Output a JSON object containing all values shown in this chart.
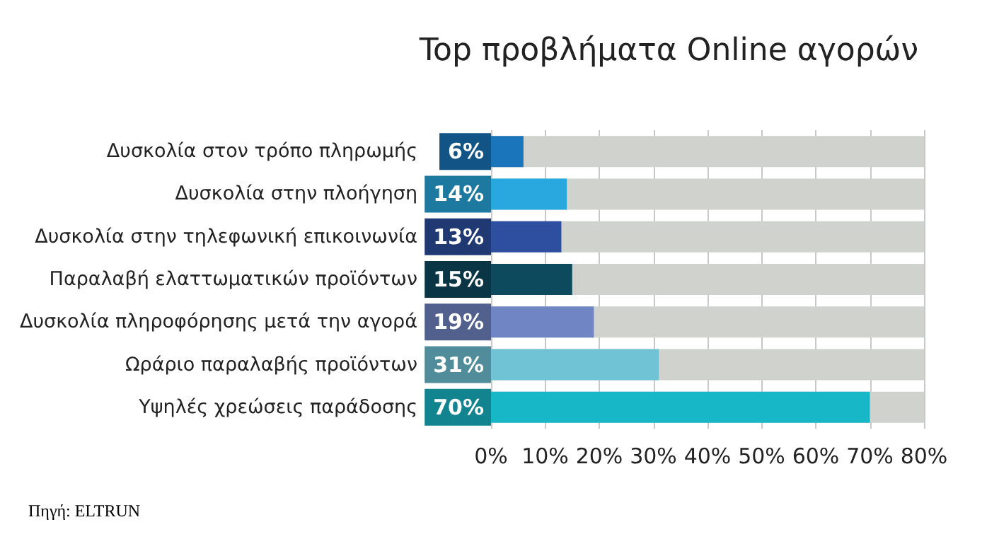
{
  "chart_data": {
    "type": "bar",
    "orientation": "horizontal",
    "title": "Top προβλήματα Online αγορών",
    "categories": [
      "Δυσκολία στον τρόπο πληρωμής",
      "Δυσκολία στην πλοήγηση",
      "Δυσκολία στην τηλεφωνική επικοινωνία",
      "Παραλαβή ελαττωματικών προϊόντων",
      "Δυσκολία πληροφόρησης μετά την αγορά",
      "Ωράριο παραλαβής προϊόντων",
      "Υψηλές χρεώσεις παράδοσης"
    ],
    "values": [
      6,
      14,
      13,
      15,
      19,
      31,
      70
    ],
    "colors": [
      "#1a75bb",
      "#29a8e0",
      "#2e4fa0",
      "#0e4a5e",
      "#7086c4",
      "#6fc3d5",
      "#17b7c8"
    ],
    "value_labels": [
      "6%",
      "14%",
      "13%",
      "15%",
      "19%",
      "31%",
      "70%"
    ],
    "xlim": [
      0,
      80
    ],
    "xticks": [
      {
        "value": 0,
        "label": "0%"
      },
      {
        "value": 10,
        "label": "10%"
      },
      {
        "value": 20,
        "label": "20%"
      },
      {
        "value": 30,
        "label": "30%"
      },
      {
        "value": 40,
        "label": "40%"
      },
      {
        "value": 50,
        "label": "50%"
      },
      {
        "value": 60,
        "label": "60%"
      },
      {
        "value": 70,
        "label": "70%"
      },
      {
        "value": 80,
        "label": "80%"
      }
    ],
    "grid": "x",
    "annotations": [
      "Πηγή: ELTRUN"
    ]
  }
}
